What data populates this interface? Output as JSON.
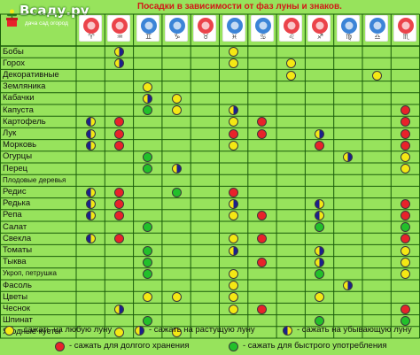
{
  "site": {
    "name": "Всаду.ру",
    "tagline": "дача сад огород"
  },
  "chart_data": {
    "type": "table",
    "title": "Посадки в зависимости от фаз луны и знаков.",
    "columns": [
      {
        "sign": "Aries",
        "glyph": "♈"
      },
      {
        "sign": "Aquarius",
        "glyph": "♒"
      },
      {
        "sign": "Gemini",
        "glyph": "♊"
      },
      {
        "sign": "Capricorn",
        "glyph": "♑"
      },
      {
        "sign": "Taurus",
        "glyph": "♉"
      },
      {
        "sign": "Pisces",
        "glyph": "♓"
      },
      {
        "sign": "Cancer",
        "glyph": "♋"
      },
      {
        "sign": "Leo",
        "glyph": "♌"
      },
      {
        "sign": "Sagittarius",
        "glyph": "♐"
      },
      {
        "sign": "Virgo",
        "glyph": "♍"
      },
      {
        "sign": "Libra",
        "glyph": "♎"
      },
      {
        "sign": "Scorpio",
        "glyph": "♏"
      }
    ],
    "rows": [
      {
        "name": "Бобы",
        "cells": [
          "",
          "waxing",
          "",
          "",
          "",
          "any",
          "",
          "",
          "",
          "",
          "",
          ""
        ]
      },
      {
        "name": "Горох",
        "cells": [
          "",
          "waxing",
          "",
          "",
          "",
          "any",
          "",
          "any",
          "",
          "",
          "",
          ""
        ]
      },
      {
        "name": "Декоративные",
        "cells": [
          "",
          "",
          "",
          "",
          "",
          "",
          "",
          "any",
          "",
          "",
          "any",
          ""
        ]
      },
      {
        "name": "Земляника",
        "cells": [
          "",
          "",
          "any",
          "",
          "",
          "",
          "",
          "",
          "",
          "",
          "",
          ""
        ]
      },
      {
        "name": "Кабачки",
        "cells": [
          "",
          "",
          "waxing",
          "any",
          "",
          "",
          "",
          "",
          "",
          "",
          "",
          ""
        ]
      },
      {
        "name": "Капуста",
        "cells": [
          "",
          "",
          "fast",
          "any",
          "",
          "waxing",
          "",
          "",
          "",
          "",
          "",
          "storage"
        ]
      },
      {
        "name": "Картофель",
        "cells": [
          "waning",
          "storage",
          "",
          "",
          "",
          "any",
          "storage",
          "",
          "",
          "",
          "",
          "storage"
        ]
      },
      {
        "name": "Лук",
        "cells": [
          "waning",
          "storage",
          "",
          "",
          "",
          "storage",
          "storage",
          "",
          "waxing",
          "",
          "",
          "storage"
        ]
      },
      {
        "name": "Морковь",
        "cells": [
          "waning",
          "storage",
          "",
          "",
          "",
          "any",
          "",
          "",
          "storage",
          "",
          "",
          "storage"
        ]
      },
      {
        "name": "Огурцы",
        "cells": [
          "",
          "",
          "fast",
          "",
          "",
          "",
          "",
          "",
          "",
          "waxing",
          "",
          "any"
        ]
      },
      {
        "name": "Перец",
        "cells": [
          "",
          "",
          "fast",
          "waxing",
          "",
          "",
          "",
          "",
          "",
          "",
          "",
          "any"
        ]
      },
      {
        "name": "Плодовые деревья",
        "cells": [
          "",
          "",
          "",
          "",
          "",
          "",
          "",
          "",
          "",
          "",
          "",
          ""
        ]
      },
      {
        "name": "Редис",
        "cells": [
          "waning",
          "storage",
          "",
          "fast",
          "",
          "storage",
          "",
          "",
          "",
          "",
          "",
          ""
        ]
      },
      {
        "name": "Редька",
        "cells": [
          "waning",
          "storage",
          "",
          "",
          "",
          "waxing",
          "",
          "",
          "waning",
          "",
          "",
          "storage"
        ]
      },
      {
        "name": "Репа",
        "cells": [
          "waning",
          "storage",
          "",
          "",
          "",
          "any",
          "storage",
          "",
          "waning",
          "",
          "",
          "storage"
        ]
      },
      {
        "name": "Салат",
        "cells": [
          "",
          "",
          "fast",
          "",
          "",
          "",
          "",
          "",
          "fast",
          "",
          "",
          "fast"
        ]
      },
      {
        "name": "Свекла",
        "cells": [
          "waning",
          "storage",
          "",
          "",
          "",
          "any",
          "storage",
          "",
          "",
          "",
          "",
          "storage"
        ]
      },
      {
        "name": "Томаты",
        "cells": [
          "",
          "",
          "fast",
          "",
          "",
          "waxing",
          "",
          "",
          "waxing",
          "",
          "",
          "any"
        ]
      },
      {
        "name": "Тыква",
        "cells": [
          "",
          "",
          "fast",
          "",
          "",
          "",
          "storage",
          "",
          "waxing",
          "",
          "",
          "any"
        ]
      },
      {
        "name": "Укроп, петрушка",
        "cells": [
          "",
          "",
          "fast",
          "",
          "",
          "any",
          "",
          "",
          "fast",
          "",
          "",
          "any"
        ]
      },
      {
        "name": "Фасоль",
        "cells": [
          "",
          "",
          "",
          "",
          "",
          "any",
          "",
          "",
          "",
          "waxing",
          "",
          ""
        ]
      },
      {
        "name": "Цветы",
        "cells": [
          "",
          "",
          "any",
          "any",
          "",
          "any",
          "",
          "",
          "any",
          "",
          "",
          ""
        ]
      },
      {
        "name": "Чеснок",
        "cells": [
          "",
          "waxing",
          "",
          "",
          "",
          "any",
          "storage",
          "",
          "",
          "",
          "",
          "storage"
        ]
      },
      {
        "name": "Шпинат",
        "cells": [
          "",
          "",
          "fast",
          "",
          "",
          "",
          "",
          "",
          "fast",
          "",
          "",
          "fast"
        ]
      },
      {
        "name": "Ягодные кусты",
        "cells": [
          "",
          "any",
          "",
          "any",
          "",
          "",
          "",
          "",
          "",
          "",
          "",
          ""
        ]
      }
    ],
    "legend": [
      {
        "key": "any",
        "label": "- сажать на любую луну"
      },
      {
        "key": "waxing",
        "label": "- сажать на растущую луну"
      },
      {
        "key": "waning",
        "label": "- сажать на убывающую луну"
      },
      {
        "key": "storage",
        "label": "- сажать для долгого хранения"
      },
      {
        "key": "fast",
        "label": "- сажать для быстрого употребления"
      }
    ],
    "colors": {
      "background": "#97e35c",
      "grid": "#1a5c0a",
      "yellow": "#f4e814",
      "blue": "#1b1f8c",
      "red": "#e8222a",
      "green": "#22c02a",
      "title": "#d11818"
    }
  }
}
